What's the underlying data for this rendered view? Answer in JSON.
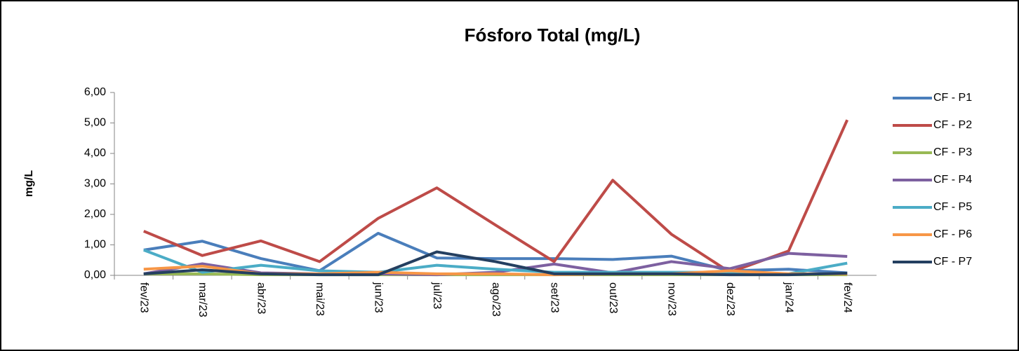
{
  "chart_data": {
    "type": "line",
    "title": "Fósforo Total (mg/L)",
    "y_label": "mg/L",
    "categories": [
      "fev/23",
      "mar/23",
      "abr/23",
      "mai/23",
      "jun/23",
      "jul/23",
      "ago/23",
      "set/23",
      "out/23",
      "nov/23",
      "dez/23",
      "jan/24",
      "fev/24"
    ],
    "series": [
      {
        "name": "CF - P1",
        "color": "#4a7ebb",
        "values": [
          0.83,
          1.12,
          0.55,
          0.15,
          1.38,
          0.57,
          0.55,
          0.55,
          0.52,
          0.63,
          0.15,
          0.2,
          0.08
        ]
      },
      {
        "name": "CF - P2",
        "color": "#be4b48",
        "values": [
          1.45,
          0.65,
          1.13,
          0.45,
          1.87,
          2.87,
          1.65,
          0.45,
          3.12,
          1.35,
          0.1,
          0.8,
          5.1
        ]
      },
      {
        "name": "CF - P3",
        "color": "#98b954",
        "values": [
          0.05,
          0.05,
          0.02,
          0.02,
          0.02,
          0.02,
          0.02,
          0.02,
          0.02,
          0.02,
          0.02,
          0.02,
          0.02
        ]
      },
      {
        "name": "CF - P4",
        "color": "#7d60a0",
        "values": [
          0.05,
          0.38,
          0.08,
          0.05,
          0.05,
          0.02,
          0.1,
          0.37,
          0.08,
          0.45,
          0.22,
          0.72,
          0.62
        ]
      },
      {
        "name": "CF - P5",
        "color": "#4bacc6",
        "values": [
          0.83,
          0.1,
          0.33,
          0.15,
          0.1,
          0.33,
          0.2,
          0.1,
          0.1,
          0.1,
          0.1,
          0.05,
          0.4
        ]
      },
      {
        "name": "CF - P6",
        "color": "#f79646",
        "values": [
          0.2,
          0.3,
          0.05,
          0.05,
          0.1,
          0.05,
          0.05,
          0.02,
          0.05,
          0.05,
          0.15,
          0.05,
          0.05
        ]
      },
      {
        "name": "CF - P7",
        "color": "#243f60",
        "values": [
          0.05,
          0.18,
          0.05,
          0.02,
          0.02,
          0.77,
          0.45,
          0.05,
          0.05,
          0.05,
          0.02,
          0.02,
          0.07
        ]
      }
    ],
    "ylim": [
      0,
      6
    ],
    "yticks": [
      {
        "value": 0,
        "label": "0,00"
      },
      {
        "value": 1,
        "label": "1,00"
      },
      {
        "value": 2,
        "label": "2,00"
      },
      {
        "value": 3,
        "label": "3,00"
      },
      {
        "value": 4,
        "label": "4,00"
      },
      {
        "value": 5,
        "label": "5,00"
      },
      {
        "value": 6,
        "label": "6,00"
      }
    ],
    "grid": false,
    "legend": "right"
  }
}
